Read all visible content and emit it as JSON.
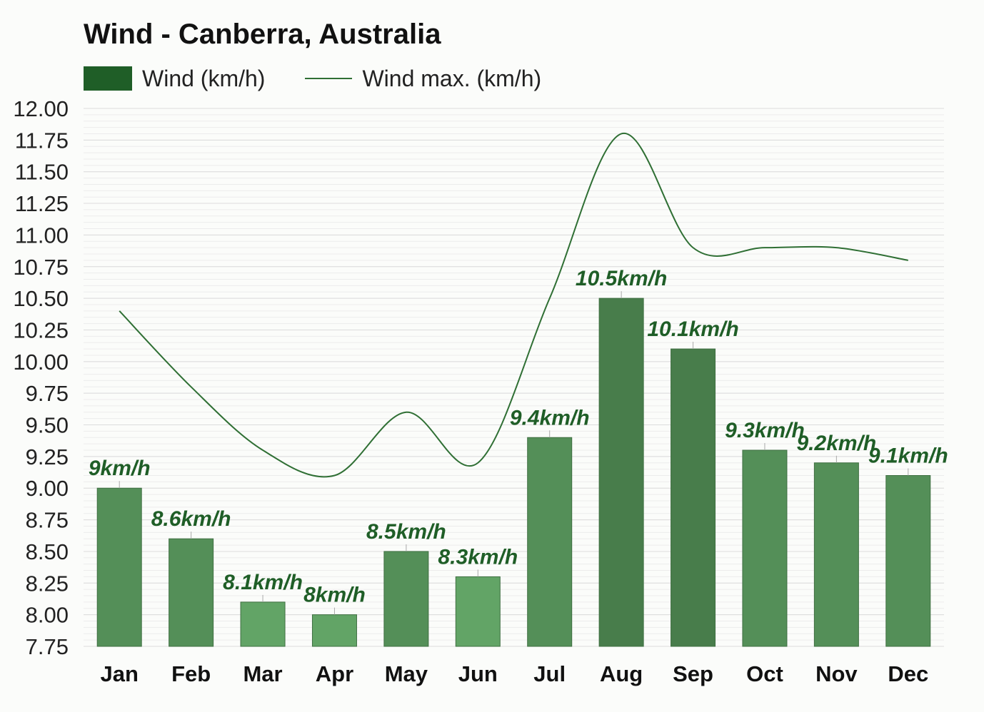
{
  "chart_data": {
    "type": "bar",
    "title": "Wind - Canberra, Australia",
    "categories": [
      "Jan",
      "Feb",
      "Mar",
      "Apr",
      "May",
      "Jun",
      "Jul",
      "Aug",
      "Sep",
      "Oct",
      "Nov",
      "Dec"
    ],
    "series": [
      {
        "name": "Wind (km/h)",
        "type": "bar",
        "values": [
          9.0,
          8.6,
          8.1,
          8.0,
          8.5,
          8.3,
          9.4,
          10.5,
          10.1,
          9.3,
          9.2,
          9.1
        ],
        "labels": [
          "9km/h",
          "8.6km/h",
          "8.1km/h",
          "8km/h",
          "8.5km/h",
          "8.3km/h",
          "9.4km/h",
          "10.5km/h",
          "10.1km/h",
          "9.3km/h",
          "9.2km/h",
          "9.1km/h"
        ]
      },
      {
        "name": "Wind max. (km/h)",
        "type": "line",
        "values": [
          10.4,
          9.8,
          9.3,
          9.1,
          9.6,
          9.2,
          10.5,
          11.8,
          10.9,
          10.9,
          10.9,
          10.8
        ]
      }
    ],
    "ylim": [
      7.75,
      12.0
    ],
    "yticks": [
      "12.00",
      "11.75",
      "11.50",
      "11.25",
      "11.00",
      "10.75",
      "10.50",
      "10.25",
      "10.00",
      "9.75",
      "9.50",
      "9.25",
      "9.00",
      "8.75",
      "8.50",
      "8.25",
      "8.00",
      "7.75"
    ],
    "xlabel": "",
    "ylabel": "",
    "grid": true,
    "legend": "top-left",
    "colors": {
      "bar_dark": "#487d4b",
      "bar_mid": "#548f58",
      "bar_light": "#62a466",
      "line": "#2f6f34",
      "label": "#1f5e27",
      "legend_bar": "#1f5e27"
    }
  }
}
